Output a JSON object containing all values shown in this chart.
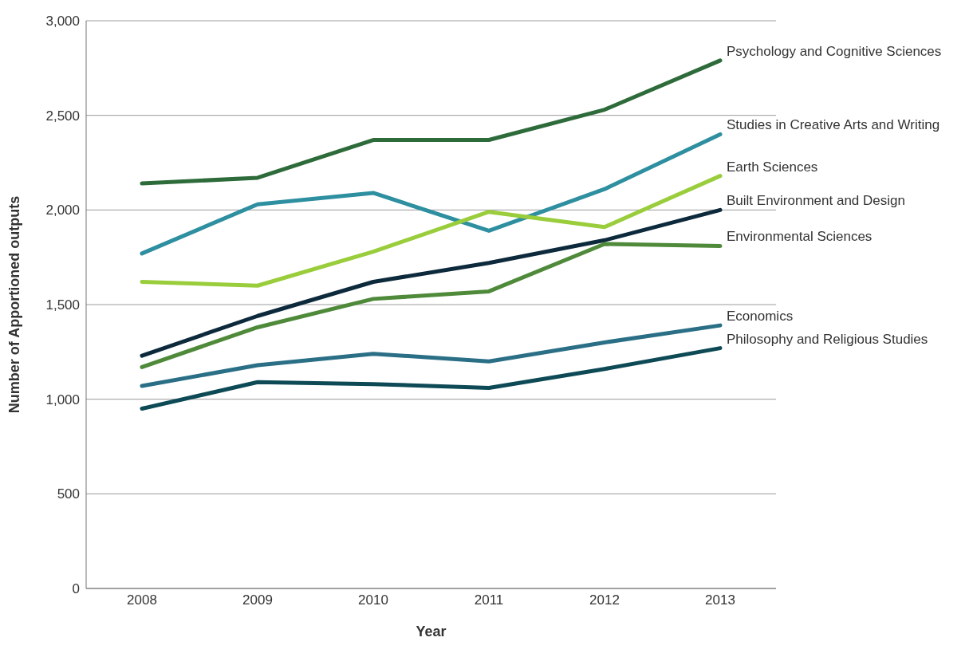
{
  "chart_data": {
    "type": "line",
    "xlabel": "Year",
    "ylabel": "Number of Apportioned outputs",
    "categories": [
      "2008",
      "2009",
      "2010",
      "2011",
      "2012",
      "2013"
    ],
    "series": [
      {
        "name": "Psychology and Cognitive Sciences",
        "color": "#2e6b3a",
        "values": [
          2140,
          2170,
          2370,
          2370,
          2530,
          2790
        ]
      },
      {
        "name": "Studies in Creative Arts and Writing",
        "color": "#2e8fa0",
        "values": [
          1770,
          2030,
          2090,
          1890,
          2110,
          2400
        ]
      },
      {
        "name": "Earth Sciences",
        "color": "#9acd3c",
        "values": [
          1620,
          1600,
          1780,
          1990,
          1910,
          2180
        ]
      },
      {
        "name": "Built Environment and Design",
        "color": "#0d2a3c",
        "values": [
          1230,
          1440,
          1620,
          1720,
          1840,
          2000
        ]
      },
      {
        "name": "Environmental Sciences",
        "color": "#4f8a3a",
        "values": [
          1170,
          1380,
          1530,
          1570,
          1820,
          1810
        ]
      },
      {
        "name": "Economics",
        "color": "#2a6f86",
        "values": [
          1070,
          1180,
          1240,
          1200,
          1300,
          1390
        ]
      },
      {
        "name": "Philosophy and Religious Studies",
        "color": "#0d4a55",
        "values": [
          950,
          1090,
          1080,
          1060,
          1160,
          1270
        ]
      }
    ],
    "ylim": [
      0,
      3000
    ],
    "yticks": [
      0,
      500,
      {
        "value": 1000,
        "label": "1,000"
      },
      {
        "value": 1500,
        "label": "1,500"
      },
      {
        "value": 2000,
        "label": "2,000"
      },
      {
        "value": 2500,
        "label": "2,500"
      },
      {
        "value": 3000,
        "label": "3,000"
      }
    ],
    "grid": "y",
    "legend": false,
    "marker": "none",
    "line_style": "solid"
  }
}
